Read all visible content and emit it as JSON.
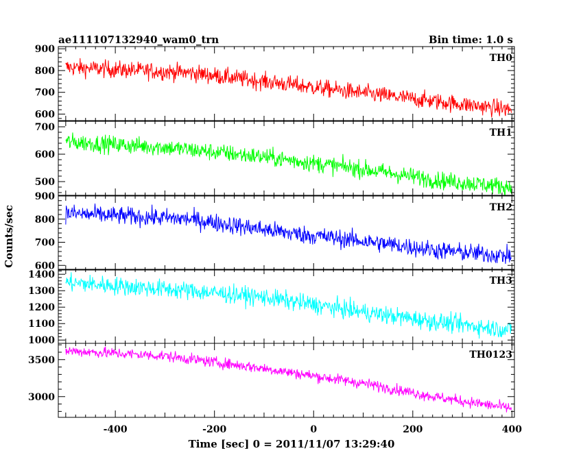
{
  "chart_data": {
    "type": "line",
    "title": "ae111107132940_wam0_trn",
    "subtitle": "Bin time: 1.0 s",
    "xlabel": "Time [sec] 0 = 2011/11/07 13:29:40",
    "ylabel": "Counts/sec",
    "xlim": [
      -515,
      405
    ],
    "xticks": [
      -400,
      -200,
      0,
      200,
      400
    ],
    "panels": [
      {
        "name": "TH0",
        "color": "#ff0000",
        "ylim": [
          570,
          910
        ],
        "yticks": [
          600,
          700,
          800,
          900
        ],
        "trend": [
          [
            -500,
            815
          ],
          [
            -250,
            790
          ],
          [
            -100,
            750
          ],
          [
            50,
            710
          ],
          [
            200,
            670
          ],
          [
            400,
            620
          ]
        ],
        "noise": 32
      },
      {
        "name": "TH1",
        "color": "#00ff00",
        "ylim": [
          450,
          720
        ],
        "yticks": [
          500,
          600,
          700
        ],
        "trend": [
          [
            -500,
            645
          ],
          [
            -300,
            625
          ],
          [
            -100,
            590
          ],
          [
            100,
            545
          ],
          [
            250,
            505
          ],
          [
            400,
            480
          ]
        ],
        "noise": 26
      },
      {
        "name": "TH2",
        "color": "#0000ff",
        "ylim": [
          580,
          900
        ],
        "yticks": [
          600,
          700,
          800,
          900
        ],
        "trend": [
          [
            -500,
            825
          ],
          [
            -250,
            800
          ],
          [
            -50,
            740
          ],
          [
            100,
            705
          ],
          [
            250,
            665
          ],
          [
            400,
            640
          ]
        ],
        "noise": 32
      },
      {
        "name": "TH3",
        "color": "#00ffff",
        "ylim": [
          980,
          1430
        ],
        "yticks": [
          1000,
          1100,
          1200,
          1300,
          1400
        ],
        "trend": [
          [
            -500,
            1350
          ],
          [
            -250,
            1300
          ],
          [
            -100,
            1260
          ],
          [
            100,
            1170
          ],
          [
            250,
            1110
          ],
          [
            400,
            1060
          ]
        ],
        "noise": 45
      },
      {
        "name": "TH0123",
        "color": "#ff00ff",
        "ylim": [
          2720,
          3720
        ],
        "yticks": [
          3000,
          3500
        ],
        "trend": [
          [
            -500,
            3620
          ],
          [
            -300,
            3550
          ],
          [
            -100,
            3380
          ],
          [
            100,
            3180
          ],
          [
            250,
            2990
          ],
          [
            400,
            2840
          ]
        ],
        "noise": 60
      }
    ]
  }
}
